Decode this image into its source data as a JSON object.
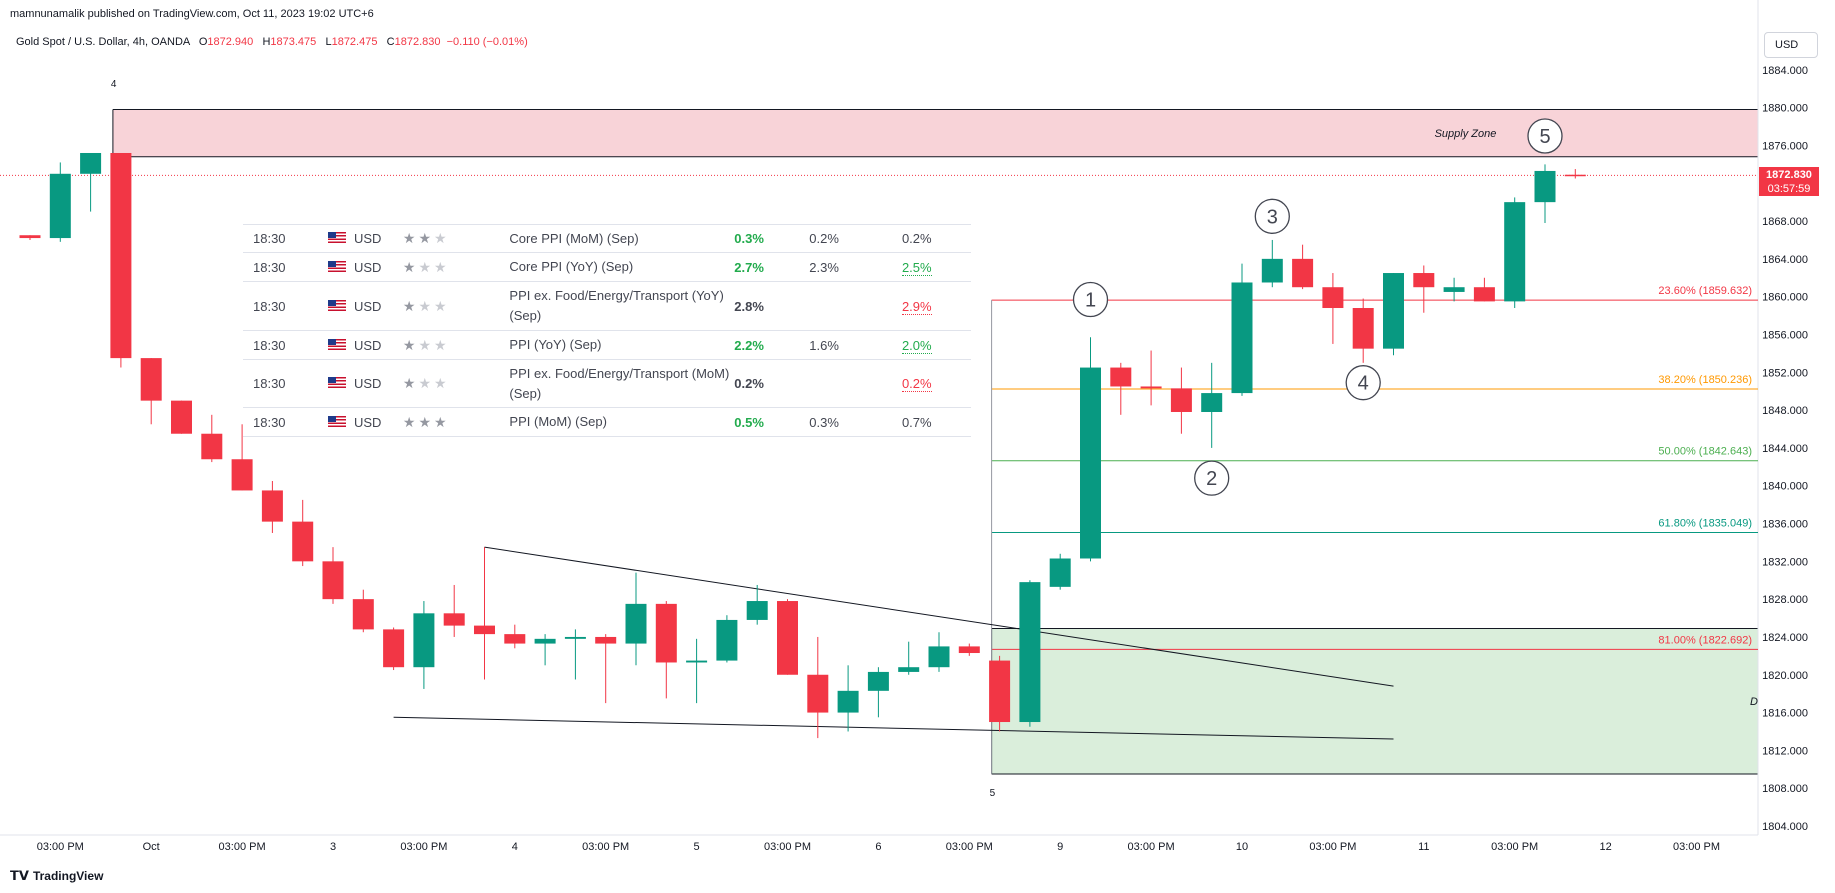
{
  "header": {
    "published_line": "mamnunamalik published on TradingView.com, Oct 11, 2023 19:02 UTC+6",
    "symbol": "Gold Spot / U.S. Dollar, 4h, OANDA",
    "open_label": "O",
    "open": "1872.940",
    "high_label": "H",
    "high": "1873.475",
    "low_label": "L",
    "low": "1872.475",
    "close_label": "C",
    "close": "1872.830",
    "change": "−0.110 (−0.01%)"
  },
  "currency_button": "USD",
  "brand": "TradingView",
  "last_price": {
    "value": "1872.830",
    "countdown": "03:57:59"
  },
  "colors": {
    "up": "#089981",
    "down": "#f23645",
    "supply_zone": "#f8d3d8",
    "demand_zone": "#daeedb"
  },
  "calendar": {
    "rows": [
      {
        "time": "18:30",
        "currency": "USD",
        "stars": 2,
        "name": "Core PPI (MoM) (Sep)",
        "actual": "0.3%",
        "actual_status": "good",
        "forecast": "0.2%",
        "previous": "0.2%",
        "previous_status": "neutral"
      },
      {
        "time": "18:30",
        "currency": "USD",
        "stars": 1,
        "name": "Core PPI (YoY) (Sep)",
        "actual": "2.7%",
        "actual_status": "good",
        "forecast": "2.3%",
        "previous": "2.5%",
        "previous_status": "good"
      },
      {
        "time": "18:30",
        "currency": "USD",
        "stars": 1,
        "name": "PPI ex. Food/Energy/Transport (YoY) (Sep)",
        "actual": "2.8%",
        "actual_status": "neutral",
        "forecast": "",
        "previous": "2.9%",
        "previous_status": "bad"
      },
      {
        "time": "18:30",
        "currency": "USD",
        "stars": 1,
        "name": "PPI (YoY) (Sep)",
        "actual": "2.2%",
        "actual_status": "good",
        "forecast": "1.6%",
        "previous": "2.0%",
        "previous_status": "good"
      },
      {
        "time": "18:30",
        "currency": "USD",
        "stars": 1,
        "name": "PPI ex. Food/Energy/Transport (MoM) (Sep)",
        "actual": "0.2%",
        "actual_status": "neutral",
        "forecast": "",
        "previous": "0.2%",
        "previous_status": "bad"
      },
      {
        "time": "18:30",
        "currency": "USD",
        "stars": 3,
        "name": "PPI (MoM) (Sep)",
        "actual": "0.5%",
        "actual_status": "good",
        "forecast": "0.3%",
        "previous": "0.7%",
        "previous_status": "neutral"
      }
    ]
  },
  "chart_data": {
    "type": "candlestick",
    "title": "Gold Spot / U.S. Dollar, 4h, OANDA",
    "ylim": [
      1804,
      1888
    ],
    "y_ticks": [
      "1884.000",
      "1880.000",
      "1876.000",
      "1872.000",
      "1868.000",
      "1864.000",
      "1860.000",
      "1856.000",
      "1852.000",
      "1848.000",
      "1844.000",
      "1840.000",
      "1836.000",
      "1832.000",
      "1828.000",
      "1824.000",
      "1820.000",
      "1816.000",
      "1812.000",
      "1808.000",
      "1804.000"
    ],
    "x_ticks": [
      {
        "label": "03:00 PM",
        "bar": 1
      },
      {
        "label": "Oct",
        "bar": 4
      },
      {
        "label": "03:00 PM",
        "bar": 7
      },
      {
        "label": "3",
        "bar": 10
      },
      {
        "label": "03:00 PM",
        "bar": 13
      },
      {
        "label": "4",
        "bar": 16
      },
      {
        "label": "03:00 PM",
        "bar": 19
      },
      {
        "label": "5",
        "bar": 22
      },
      {
        "label": "03:00 PM",
        "bar": 25
      },
      {
        "label": "6",
        "bar": 28
      },
      {
        "label": "03:00 PM",
        "bar": 31
      },
      {
        "label": "9",
        "bar": 34
      },
      {
        "label": "03:00 PM",
        "bar": 37
      },
      {
        "label": "10",
        "bar": 40
      },
      {
        "label": "03:00 PM",
        "bar": 43
      },
      {
        "label": "11",
        "bar": 46
      },
      {
        "label": "03:00 PM",
        "bar": 49
      },
      {
        "label": "12",
        "bar": 52
      },
      {
        "label": "03:00 PM",
        "bar": 55
      }
    ],
    "candles": [
      {
        "o": 1866.5,
        "h": 1866.5,
        "l": 1866.0,
        "c": 1866.2
      },
      {
        "o": 1866.2,
        "h": 1874.2,
        "l": 1865.8,
        "c": 1873.0
      },
      {
        "o": 1873.0,
        "h": 1875.2,
        "l": 1869.0,
        "c": 1875.2
      },
      {
        "o": 1875.2,
        "h": 1875.2,
        "l": 1852.5,
        "c": 1853.5
      },
      {
        "o": 1853.5,
        "h": 1853.5,
        "l": 1846.5,
        "c": 1849.0
      },
      {
        "o": 1849.0,
        "h": 1849.0,
        "l": 1845.5,
        "c": 1845.5
      },
      {
        "o": 1845.5,
        "h": 1847.5,
        "l": 1842.5,
        "c": 1842.8
      },
      {
        "o": 1842.8,
        "h": 1846.5,
        "l": 1839.5,
        "c": 1839.5
      },
      {
        "o": 1839.5,
        "h": 1840.5,
        "l": 1835.0,
        "c": 1836.2
      },
      {
        "o": 1836.2,
        "h": 1838.5,
        "l": 1831.5,
        "c": 1832.0
      },
      {
        "o": 1832.0,
        "h": 1833.5,
        "l": 1827.5,
        "c": 1828.0
      },
      {
        "o": 1828.0,
        "h": 1829.0,
        "l": 1824.5,
        "c": 1824.8
      },
      {
        "o": 1824.8,
        "h": 1825.0,
        "l": 1820.5,
        "c": 1820.8
      },
      {
        "o": 1820.8,
        "h": 1827.8,
        "l": 1818.5,
        "c": 1826.5
      },
      {
        "o": 1826.5,
        "h": 1829.5,
        "l": 1824.0,
        "c": 1825.2
      },
      {
        "o": 1825.2,
        "h": 1833.5,
        "l": 1819.5,
        "c": 1824.3
      },
      {
        "o": 1824.3,
        "h": 1825.3,
        "l": 1822.8,
        "c": 1823.3
      },
      {
        "o": 1823.3,
        "h": 1824.3,
        "l": 1821.0,
        "c": 1823.8
      },
      {
        "o": 1823.8,
        "h": 1824.8,
        "l": 1819.5,
        "c": 1824.0
      },
      {
        "o": 1824.0,
        "h": 1824.3,
        "l": 1817.0,
        "c": 1823.3
      },
      {
        "o": 1823.3,
        "h": 1830.8,
        "l": 1821.0,
        "c": 1827.5
      },
      {
        "o": 1827.5,
        "h": 1827.8,
        "l": 1817.5,
        "c": 1821.3
      },
      {
        "o": 1821.3,
        "h": 1823.8,
        "l": 1817.0,
        "c": 1821.5
      },
      {
        "o": 1821.5,
        "h": 1826.3,
        "l": 1821.3,
        "c": 1825.8
      },
      {
        "o": 1825.8,
        "h": 1829.5,
        "l": 1825.3,
        "c": 1827.8
      },
      {
        "o": 1827.8,
        "h": 1828.0,
        "l": 1820.0,
        "c": 1820.0
      },
      {
        "o": 1820.0,
        "h": 1824.0,
        "l": 1813.3,
        "c": 1816.0
      },
      {
        "o": 1816.0,
        "h": 1821.0,
        "l": 1814.0,
        "c": 1818.3
      },
      {
        "o": 1818.3,
        "h": 1820.8,
        "l": 1815.5,
        "c": 1820.3
      },
      {
        "o": 1820.3,
        "h": 1823.5,
        "l": 1820.0,
        "c": 1820.8
      },
      {
        "o": 1820.8,
        "h": 1824.5,
        "l": 1820.3,
        "c": 1823.0
      },
      {
        "o": 1823.0,
        "h": 1823.3,
        "l": 1822.0,
        "c": 1822.3
      },
      {
        "o": 1821.5,
        "h": 1822.0,
        "l": 1814.0,
        "c": 1815.0
      },
      {
        "o": 1815.0,
        "h": 1830.0,
        "l": 1814.5,
        "c": 1829.8
      },
      {
        "o": 1829.3,
        "h": 1832.8,
        "l": 1829.0,
        "c": 1832.3
      },
      {
        "o": 1832.3,
        "h": 1855.7,
        "l": 1832.0,
        "c": 1852.5
      },
      {
        "o": 1852.5,
        "h": 1853.0,
        "l": 1847.5,
        "c": 1850.5
      },
      {
        "o": 1850.5,
        "h": 1854.3,
        "l": 1848.5,
        "c": 1850.3
      },
      {
        "o": 1850.3,
        "h": 1852.5,
        "l": 1845.5,
        "c": 1847.8
      },
      {
        "o": 1847.8,
        "h": 1853.0,
        "l": 1844.0,
        "c": 1849.8
      },
      {
        "o": 1849.8,
        "h": 1863.5,
        "l": 1849.5,
        "c": 1861.5
      },
      {
        "o": 1861.5,
        "h": 1866.0,
        "l": 1861.0,
        "c": 1864.0
      },
      {
        "o": 1864.0,
        "h": 1865.5,
        "l": 1860.8,
        "c": 1861.0
      },
      {
        "o": 1861.0,
        "h": 1862.5,
        "l": 1855.0,
        "c": 1858.8
      },
      {
        "o": 1858.8,
        "h": 1859.8,
        "l": 1853.0,
        "c": 1854.5
      },
      {
        "o": 1854.5,
        "h": 1862.5,
        "l": 1853.8,
        "c": 1862.5
      },
      {
        "o": 1862.5,
        "h": 1863.3,
        "l": 1858.3,
        "c": 1861.0
      },
      {
        "o": 1860.5,
        "h": 1862.0,
        "l": 1859.5,
        "c": 1861.0
      },
      {
        "o": 1861.0,
        "h": 1862.0,
        "l": 1859.5,
        "c": 1859.5
      },
      {
        "o": 1859.5,
        "h": 1870.5,
        "l": 1858.8,
        "c": 1870.0
      },
      {
        "o": 1870.0,
        "h": 1874.0,
        "l": 1867.8,
        "c": 1873.3
      },
      {
        "o": 1872.9,
        "h": 1873.5,
        "l": 1872.5,
        "c": 1872.8
      }
    ],
    "fib_levels": [
      {
        "label": "23.60% (1859.632)",
        "price": 1859.632,
        "color": "#f23645"
      },
      {
        "label": "38.20% (1850.236)",
        "price": 1850.236,
        "color": "#ff9800"
      },
      {
        "label": "50.00% (1842.643)",
        "price": 1842.643,
        "color": "#4caf50"
      },
      {
        "label": "61.80% (1835.049)",
        "price": 1835.049,
        "color": "#089981"
      },
      {
        "label": "81.00% (1822.692)",
        "price": 1822.692,
        "color": "#f23645"
      }
    ],
    "zones": [
      {
        "label": "Supply Zone",
        "from_bar": 3,
        "top": 1879.8,
        "bottom": 1874.8
      },
      {
        "label": "D",
        "from_bar": 32,
        "top": 1824.9,
        "bottom": 1809.5
      }
    ],
    "wave_labels": [
      {
        "label": "1",
        "bar": 35,
        "price": 1859.7
      },
      {
        "label": "2",
        "bar": 39,
        "price": 1840.8
      },
      {
        "label": "3",
        "bar": 41,
        "price": 1868.5
      },
      {
        "label": "4",
        "bar": 44,
        "price": 1850.9
      },
      {
        "label": "5",
        "bar": 50,
        "price": 1877.0
      }
    ],
    "anchor_labels": [
      {
        "label": "4",
        "bar": 3,
        "price": 1882.2
      },
      {
        "label": "5",
        "bar": 32,
        "price": 1807.2
      }
    ],
    "trendlines": [
      {
        "bar1": 15,
        "p1": 1833.5,
        "bar2": 45,
        "p2": 1818.8
      },
      {
        "bar1": 12,
        "p1": 1815.5,
        "bar2": 45,
        "p2": 1813.2
      }
    ]
  }
}
